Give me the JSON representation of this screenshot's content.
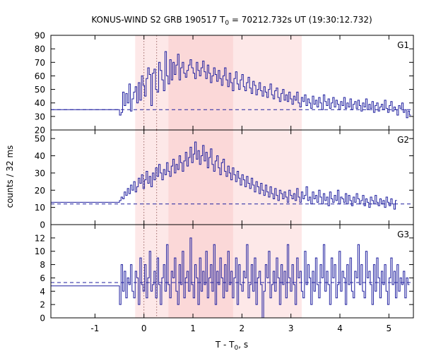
{
  "chart_data": {
    "type": "line",
    "title_prefix": "KONUS-WIND S2 GRB 190517 T",
    "title_sub": "0",
    "title_suffix": " = 70212.732s UT (19:30:12.732)",
    "xlabel_prefix": "T - T",
    "xlabel_sub": "0",
    "xlabel_suffix": ", s",
    "ylabel": "counts / 32 ms",
    "xlim": [
      -1.9,
      5.5
    ],
    "x_ticks": [
      -1,
      0,
      1,
      2,
      3,
      4,
      5
    ],
    "highlight_regions": [
      {
        "x": [
          -0.18,
          3.22
        ],
        "color": "#fde8e8"
      },
      {
        "x": [
          0.5,
          1.82
        ],
        "color": "#fbd8d8"
      }
    ],
    "vertical_markers": [
      0.0,
      0.26
    ],
    "line_color": "#1f1f9f",
    "panels": [
      {
        "label": "G1",
        "ylim": [
          20,
          90
        ],
        "y_ticks": [
          20,
          30,
          40,
          50,
          60,
          70,
          80,
          90
        ],
        "background_level": 35,
        "pre_trigger": {
          "x": [
            -1.9,
            -0.5
          ],
          "value": 35
        },
        "x_start": -0.5,
        "bin": 0.032,
        "values": [
          31,
          33,
          48,
          38,
          47,
          40,
          54,
          34,
          43,
          48,
          52,
          40,
          55,
          42,
          60,
          53,
          45,
          58,
          66,
          61,
          38,
          62,
          65,
          50,
          48,
          70,
          64,
          57,
          49,
          78,
          60,
          54,
          72,
          57,
          70,
          61,
          68,
          76,
          57,
          66,
          70,
          62,
          59,
          64,
          68,
          72,
          66,
          62,
          58,
          70,
          64,
          60,
          66,
          71,
          63,
          58,
          68,
          62,
          55,
          60,
          66,
          61,
          56,
          64,
          58,
          53,
          60,
          66,
          57,
          52,
          62,
          55,
          49,
          58,
          63,
          54,
          50,
          57,
          61,
          52,
          49,
          55,
          59,
          51,
          47,
          56,
          53,
          46,
          50,
          55,
          49,
          45,
          52,
          48,
          44,
          50,
          54,
          46,
          43,
          49,
          51,
          44,
          41,
          47,
          50,
          42,
          46,
          41,
          48,
          43,
          39,
          45,
          42,
          48,
          40,
          37,
          44,
          41,
          46,
          38,
          43,
          40,
          36,
          45,
          39,
          42,
          37,
          44,
          40,
          35,
          46,
          41,
          38,
          43,
          36,
          40,
          44,
          37,
          42,
          39,
          35,
          41,
          38,
          44,
          36,
          40,
          37,
          43,
          35,
          39,
          41,
          36,
          42,
          38,
          34,
          40,
          37,
          43,
          35,
          39,
          36,
          41,
          33,
          38,
          40,
          34,
          37,
          39,
          35,
          42,
          36,
          33,
          38,
          41,
          34,
          37,
          35,
          31,
          38,
          36,
          40,
          33,
          35,
          29,
          34,
          31
        ]
      },
      {
        "label": "G2",
        "ylim": [
          0,
          55
        ],
        "y_ticks": [
          0,
          10,
          20,
          30,
          40,
          50
        ],
        "background_level": 12,
        "pre_trigger": {
          "x": [
            -1.9,
            -0.5
          ],
          "value": 13
        },
        "x_start": -0.5,
        "bin": 0.032,
        "values": [
          14,
          16,
          15,
          19,
          17,
          21,
          18,
          23,
          20,
          25,
          19,
          22,
          27,
          24,
          29,
          21,
          26,
          31,
          24,
          28,
          22,
          30,
          26,
          33,
          28,
          35,
          30,
          26,
          32,
          29,
          36,
          31,
          28,
          34,
          38,
          30,
          35,
          32,
          40,
          36,
          31,
          37,
          42,
          34,
          39,
          45,
          36,
          41,
          48,
          38,
          43,
          35,
          40,
          46,
          37,
          42,
          33,
          39,
          44,
          35,
          31,
          37,
          40,
          33,
          29,
          36,
          38,
          31,
          28,
          34,
          30,
          26,
          33,
          29,
          25,
          31,
          27,
          23,
          29,
          26,
          22,
          28,
          24,
          21,
          27,
          23,
          19,
          25,
          22,
          18,
          24,
          20,
          17,
          23,
          19,
          16,
          22,
          18,
          15,
          21,
          17,
          14,
          20,
          18,
          15,
          19,
          16,
          13,
          20,
          17,
          15,
          18,
          14,
          21,
          16,
          13,
          19,
          15,
          17,
          22,
          14,
          16,
          12,
          19,
          15,
          17,
          13,
          20,
          16,
          12,
          18,
          14,
          16,
          11,
          19,
          15,
          13,
          17,
          14,
          20,
          12,
          16,
          15,
          13,
          18,
          12,
          17,
          14,
          11,
          16,
          13,
          18,
          15,
          12,
          14,
          17,
          11,
          15,
          13,
          10,
          16,
          14,
          12,
          17,
          13,
          11,
          15,
          12,
          14,
          10,
          16,
          13,
          11,
          15,
          12,
          9,
          14
        ]
      },
      {
        "label": "G3",
        "ylim": [
          0,
          14
        ],
        "y_ticks": [
          0,
          2,
          4,
          6,
          8,
          10,
          12
        ],
        "background_level": 5.3,
        "pre_trigger": {
          "x": [
            -1.9,
            -0.5
          ],
          "value": 4.8
        },
        "x_start": -0.5,
        "bin": 0.032,
        "values": [
          2,
          8,
          4,
          7,
          3,
          6,
          5,
          8,
          4,
          3,
          7,
          6,
          2,
          9,
          5,
          4,
          8,
          3,
          6,
          10,
          4,
          5,
          7,
          3,
          9,
          5,
          2,
          6,
          8,
          4,
          11,
          5,
          3,
          7,
          6,
          9,
          4,
          2,
          8,
          5,
          10,
          3,
          6,
          7,
          4,
          12,
          5,
          3,
          8,
          6,
          2,
          9,
          4,
          7,
          5,
          10,
          3,
          6,
          8,
          4,
          11,
          2,
          7,
          5,
          9,
          6,
          3,
          8,
          4,
          10,
          5,
          7,
          3,
          6,
          9,
          2,
          8,
          5,
          4,
          7,
          6,
          11,
          3,
          5,
          8,
          4,
          9,
          2,
          6,
          7,
          5,
          0,
          4,
          8,
          6,
          10,
          3,
          5,
          7,
          4,
          9,
          6,
          2,
          8,
          5,
          7,
          3,
          11,
          6,
          4,
          8,
          5,
          2,
          9,
          6,
          7,
          4,
          3,
          10,
          5,
          8,
          6,
          2,
          7,
          4,
          9,
          5,
          3,
          8,
          6,
          11,
          4,
          7,
          5,
          2,
          9,
          6,
          8,
          3,
          5,
          10,
          4,
          7,
          6,
          2,
          8,
          5,
          9,
          4,
          3,
          7,
          6,
          11,
          5,
          8,
          4,
          3,
          10,
          6,
          7,
          5,
          2,
          8,
          4,
          9,
          6,
          3,
          7,
          5,
          8,
          4,
          2,
          6,
          9,
          5,
          7,
          3,
          8,
          4,
          6,
          5,
          7,
          3,
          6,
          5
        ]
      }
    ]
  }
}
